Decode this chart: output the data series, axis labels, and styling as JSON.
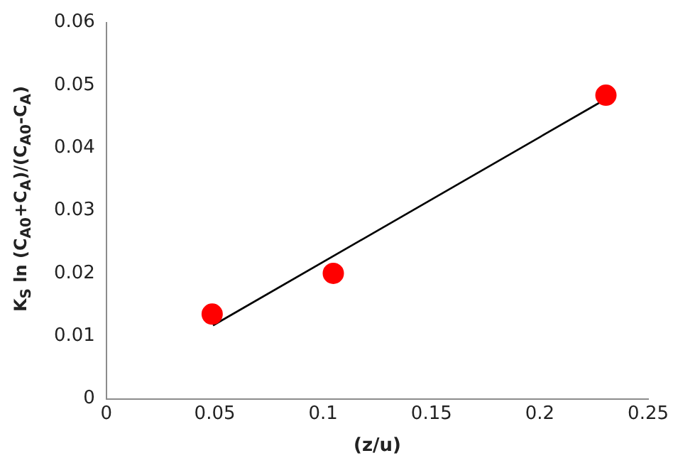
{
  "chart_data": {
    "type": "scatter",
    "xlabel": "(z/u)",
    "ylabel": "K$_{S}$ ln (C$_{A0}$+C$_{A}$)/(C$_{A0}$-C$_{A}$)",
    "series": [
      {
        "type": "scatter",
        "color": "#ff0000",
        "marker": "circle",
        "x": [
          0.0488,
          0.1047,
          0.2305
        ],
        "values": [
          0.0135,
          0.02,
          0.0484
        ]
      },
      {
        "type": "line",
        "color": "#000000",
        "marker": "none",
        "line_style": "solid",
        "x": [
          0.0492,
          0.23
        ],
        "values": [
          0.0117,
          0.0477
        ]
      }
    ],
    "xlim": [
      0,
      0.25
    ],
    "xticks": [
      0,
      0.05,
      0.1,
      0.15,
      0.2,
      0.25
    ],
    "ylim": [
      0,
      0.06
    ],
    "yticks": [
      0,
      0.01,
      0.02,
      0.03,
      0.04,
      0.05,
      0.06
    ],
    "grid": false,
    "legend": false
  }
}
